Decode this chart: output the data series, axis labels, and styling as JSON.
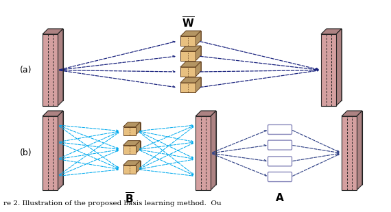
{
  "label_a": "(a)",
  "label_b": "(b)",
  "bg_color": "#ffffff",
  "panel_color": "#d4a0a0",
  "panel_face_light": "#dbb0b0",
  "panel_edge_color": "#222222",
  "filter_face_color": "#e8c080",
  "filter_edge_color": "#664422",
  "arrow_color_a": "#1a237e",
  "arrow_color_b": "#00aaee",
  "arrow_color_b2": "#334488",
  "coeff_color": "#8888bb",
  "coeff_fill": "#ffffff",
  "caption": "re 2. Illustration of the proposed basis learning method.  Ou"
}
